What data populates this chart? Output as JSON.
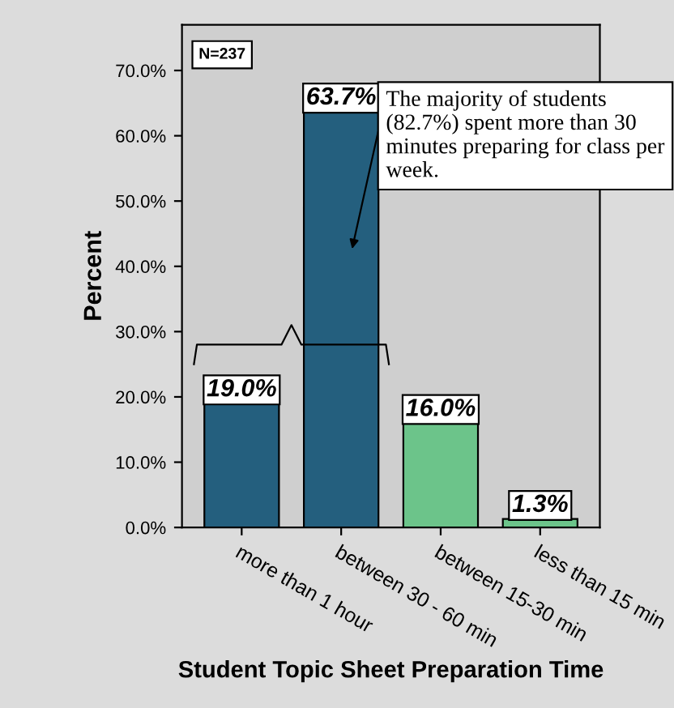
{
  "chart_data": {
    "type": "bar",
    "xlabel": "Student Topic Sheet Preparation Time",
    "ylabel": "Percent",
    "categories": [
      "more than 1 hour",
      "between 30 - 60 min",
      "between 15-30 min",
      "less than 15 min"
    ],
    "values": [
      19.0,
      63.7,
      16.0,
      1.3
    ],
    "colors": [
      "#245f7e",
      "#245f7e",
      "#6cc48a",
      "#6cc48a"
    ],
    "value_labels": [
      "19.0%",
      "63.7%",
      "16.0%",
      "1.3%"
    ],
    "ylim": [
      0,
      77
    ],
    "yticks": [
      {
        "value": 0,
        "label": "0.0%"
      },
      {
        "value": 10,
        "label": "10.0%"
      },
      {
        "value": 20,
        "label": "20.0%"
      },
      {
        "value": 30,
        "label": "30.0%"
      },
      {
        "value": 40,
        "label": "40.0%"
      },
      {
        "value": 50,
        "label": "50.0%"
      },
      {
        "value": 60,
        "label": "60.0%"
      },
      {
        "value": 70,
        "label": "70.0%"
      }
    ],
    "annotations": [
      "N=237",
      "The majority of students (82.7%) spent more than 30 minutes preparing for class per week."
    ],
    "grid": false,
    "legend": false
  }
}
